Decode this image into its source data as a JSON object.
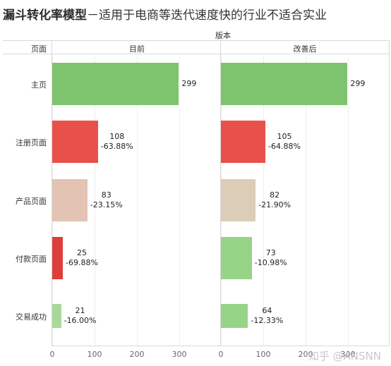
{
  "title": {
    "bold": "漏斗转化率模型",
    "rest": "－适用于电商等迭代速度快的行业不适合实业"
  },
  "header": {
    "group_label": "版本",
    "row_header": "页面",
    "panels": [
      "目前",
      "改善后"
    ]
  },
  "chart_data": {
    "type": "bar",
    "orientation": "horizontal",
    "categories": [
      "主页",
      "注册页面",
      "产品页面",
      "付款页面",
      "交易成功"
    ],
    "panels": [
      {
        "name": "目前",
        "values": [
          299,
          108,
          83,
          25,
          21
        ],
        "pct_labels": [
          "",
          "-63.88%",
          "-23.15%",
          "-69.88%",
          "-16.00%"
        ],
        "colors": [
          "#7ec46e",
          "#e8514a",
          "#e3c3b3",
          "#dc3f3b",
          "#a9d99a"
        ]
      },
      {
        "name": "改善后",
        "values": [
          299,
          105,
          82,
          73,
          64
        ],
        "pct_labels": [
          "",
          "-64.88%",
          "-21.90%",
          "-10.98%",
          "-12.33%"
        ],
        "colors": [
          "#7ec46e",
          "#e8514a",
          "#dccdb8",
          "#96d487",
          "#96d487"
        ]
      }
    ],
    "xlim": [
      0,
      320
    ],
    "xticks": [
      0,
      100,
      200,
      300
    ]
  },
  "watermark": "知乎 @ANSNN"
}
